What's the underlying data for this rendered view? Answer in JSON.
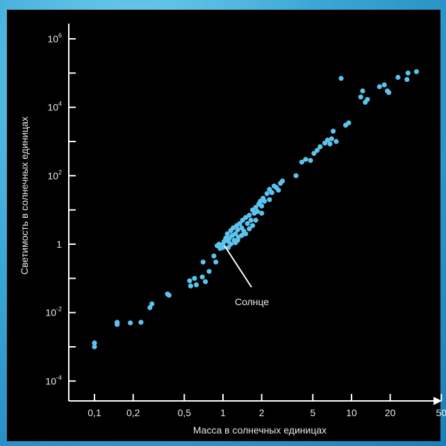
{
  "chart_data": {
    "type": "scatter",
    "xlabel": "Масса в солнечных единицах",
    "ylabel": "Светимость в солнечных единицах",
    "x_scale": "log",
    "y_scale": "log",
    "xlim": [
      0.07,
      55
    ],
    "ylim": [
      3e-05,
      3000000
    ],
    "x_ticks": [
      {
        "value": 0.1,
        "label": "0,1"
      },
      {
        "value": 0.2,
        "label": "0,2"
      },
      {
        "value": 0.5,
        "label": "0,5"
      },
      {
        "value": 1,
        "label": "1"
      },
      {
        "value": 2,
        "label": "2"
      },
      {
        "value": 5,
        "label": "5"
      },
      {
        "value": 10,
        "label": "10"
      },
      {
        "value": 20,
        "label": "20"
      },
      {
        "value": 50,
        "label": "50"
      }
    ],
    "y_ticks": [
      {
        "value": 0.0001,
        "base": "10",
        "exp": "-4"
      },
      {
        "value": 0.01,
        "base": "10",
        "exp": "-2"
      },
      {
        "value": 1,
        "base": "1",
        "exp": ""
      },
      {
        "value": 100,
        "base": "10",
        "exp": "2"
      },
      {
        "value": 10000,
        "base": "10",
        "exp": "4"
      },
      {
        "value": 1000000,
        "base": "10",
        "exp": "6"
      }
    ],
    "y_minor_ticks": [
      0.001,
      0.1,
      10,
      1000,
      100000
    ],
    "annotation": {
      "text": "Солнце",
      "x": 1.0,
      "y": 1.0
    },
    "point_color": "#5bc3ec",
    "points": [
      [
        0.1,
        0.0013
      ],
      [
        0.1,
        0.001
      ],
      [
        0.15,
        0.0045
      ],
      [
        0.15,
        0.005
      ],
      [
        0.15,
        0.0052
      ],
      [
        0.19,
        0.005
      ],
      [
        0.23,
        0.0052
      ],
      [
        0.27,
        0.014
      ],
      [
        0.28,
        0.018
      ],
      [
        0.38,
        0.032
      ],
      [
        0.37,
        0.035
      ],
      [
        0.55,
        0.085
      ],
      [
        0.56,
        0.06
      ],
      [
        0.6,
        0.1
      ],
      [
        0.62,
        0.065
      ],
      [
        0.69,
        0.11
      ],
      [
        0.73,
        0.08
      ],
      [
        0.7,
        0.3
      ],
      [
        0.78,
        0.16
      ],
      [
        0.85,
        0.45
      ],
      [
        0.88,
        0.3
      ],
      [
        0.9,
        0.9
      ],
      [
        0.93,
        1.0
      ],
      [
        0.95,
        0.75
      ],
      [
        1.0,
        0.8
      ],
      [
        1.0,
        1.0
      ],
      [
        1.02,
        1.2
      ],
      [
        1.05,
        1.5
      ],
      [
        1.08,
        2.0
      ],
      [
        1.1,
        1.2
      ],
      [
        1.1,
        0.8
      ],
      [
        1.12,
        1.5
      ],
      [
        1.15,
        2.5
      ],
      [
        1.18,
        1.8
      ],
      [
        1.2,
        3.0
      ],
      [
        1.22,
        1.3
      ],
      [
        1.25,
        2.0
      ],
      [
        1.28,
        3.5
      ],
      [
        1.3,
        2.6
      ],
      [
        1.32,
        1.6
      ],
      [
        1.35,
        4.0
      ],
      [
        1.4,
        3.0
      ],
      [
        1.42,
        5.0
      ],
      [
        1.45,
        2.4
      ],
      [
        1.5,
        6.0
      ],
      [
        1.55,
        4.0
      ],
      [
        1.6,
        7.0
      ],
      [
        1.65,
        5.0
      ],
      [
        1.7,
        10.0
      ],
      [
        1.75,
        8.0
      ],
      [
        1.8,
        12.0
      ],
      [
        1.85,
        9.0
      ],
      [
        1.9,
        15.0
      ],
      [
        1.95,
        18.0
      ],
      [
        2.0,
        13.0
      ],
      [
        2.05,
        22.0
      ],
      [
        2.1,
        18.0
      ],
      [
        2.2,
        30.0
      ],
      [
        2.3,
        40.0
      ],
      [
        2.4,
        32.0
      ],
      [
        2.5,
        50.0
      ],
      [
        2.6,
        45.0
      ],
      [
        2.7,
        38.0
      ],
      [
        2.8,
        60.0
      ],
      [
        2.9,
        70.0
      ],
      [
        1.15,
        1.0
      ],
      [
        1.3,
        1.3
      ],
      [
        1.5,
        2.0
      ],
      [
        1.7,
        3.5
      ],
      [
        1.8,
        5.0
      ],
      [
        2.0,
        8.0
      ],
      [
        2.3,
        20.0
      ],
      [
        1.4,
        1.8
      ],
      [
        1.6,
        2.8
      ],
      [
        1.25,
        1.1
      ],
      [
        3.7,
        100.0
      ],
      [
        4.1,
        250.0
      ],
      [
        4.4,
        300.0
      ],
      [
        4.8,
        280.0
      ],
      [
        5.1,
        450.0
      ],
      [
        5.4,
        550.0
      ],
      [
        5.7,
        700.0
      ],
      [
        6.2,
        900.0
      ],
      [
        6.5,
        1100.0
      ],
      [
        7.0,
        1200.0
      ],
      [
        7.2,
        2000.0
      ],
      [
        7.6,
        1000.0
      ],
      [
        6.8,
        850.0
      ],
      [
        9.0,
        3000.0
      ],
      [
        9.5,
        3500.0
      ],
      [
        11.8,
        20000.0
      ],
      [
        12.8,
        14000.0
      ],
      [
        13.3,
        17000.0
      ],
      [
        12.2,
        30000.0
      ],
      [
        16.5,
        40000.0
      ],
      [
        18.0,
        45000.0
      ],
      [
        19.0,
        30000.0
      ],
      [
        19.5,
        27000.0
      ],
      [
        23.0,
        75000.0
      ],
      [
        27.5,
        100000.0
      ],
      [
        32.0,
        110000.0
      ],
      [
        27.0,
        65000.0
      ],
      [
        8.3,
        70000.0
      ]
    ]
  }
}
